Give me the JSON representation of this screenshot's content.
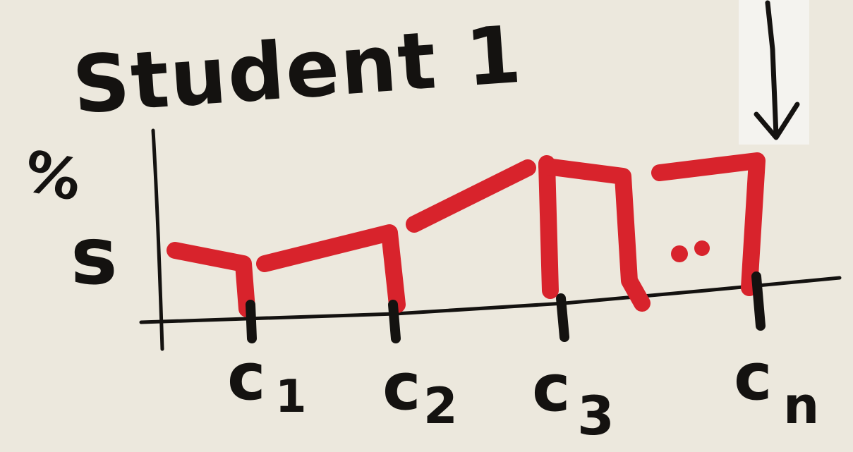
{
  "title": "Student 1",
  "y_axis": {
    "unit_label": "%",
    "variable_label": "s"
  },
  "x_axis": {
    "ticks": [
      {
        "main": "c",
        "sub": "1"
      },
      {
        "main": "c",
        "sub": "2"
      },
      {
        "main": "c",
        "sub": "3"
      },
      {
        "main": "c",
        "sub": "n"
      }
    ]
  },
  "ellipsis": "..",
  "colors": {
    "ink": "#141210",
    "red_marker": "#d8232c",
    "paper": "#ece8dd",
    "patch": "#f4f3ef"
  },
  "pointer": "arrow-down-icon"
}
